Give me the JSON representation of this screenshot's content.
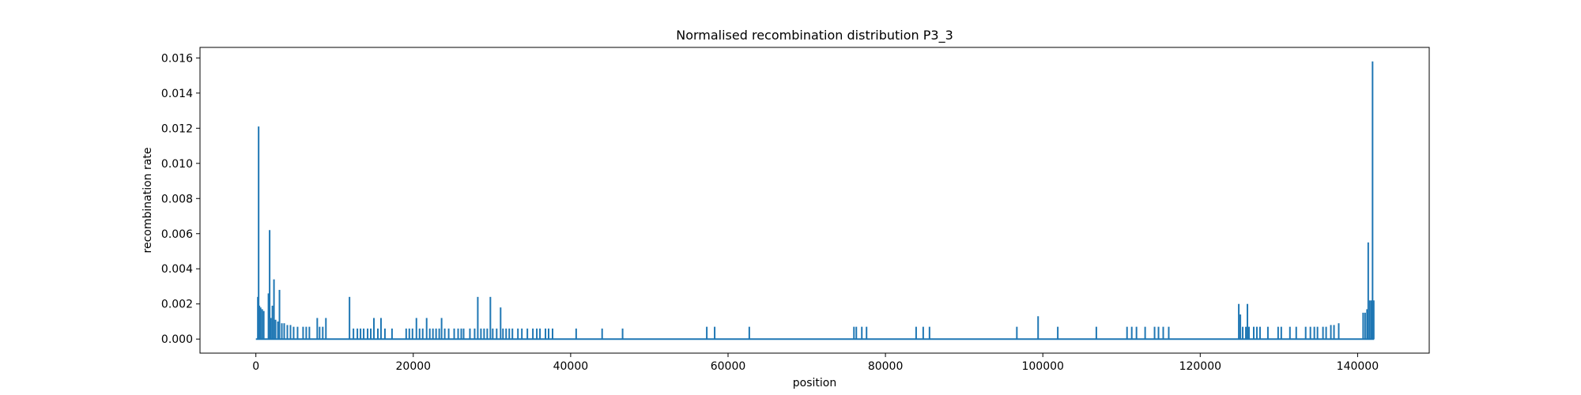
{
  "chart_data": {
    "type": "line",
    "title": "Normalised recombination distribution P3_3",
    "xlabel": "position",
    "ylabel": "recombination rate",
    "xlim": [
      -7100,
      149100
    ],
    "ylim": [
      -0.0008,
      0.0166
    ],
    "xticks": [
      0,
      20000,
      40000,
      60000,
      80000,
      100000,
      120000,
      140000
    ],
    "xtick_labels": [
      "0",
      "20000",
      "40000",
      "60000",
      "80000",
      "100000",
      "120000",
      "140000"
    ],
    "yticks": [
      0.0,
      0.002,
      0.004,
      0.006,
      0.008,
      0.01,
      0.012,
      0.014,
      0.016
    ],
    "ytick_labels": [
      "0.000",
      "0.002",
      "0.004",
      "0.006",
      "0.008",
      "0.010",
      "0.012",
      "0.014",
      "0.016"
    ],
    "grid": false,
    "series": [
      {
        "color": "#1f77b4",
        "x_range": [
          0,
          142100
        ],
        "baseline": 0.0,
        "spikes": [
          [
            250,
            0.0024
          ],
          [
            350,
            0.0121
          ],
          [
            450,
            0.0019
          ],
          [
            600,
            0.0018
          ],
          [
            800,
            0.0017
          ],
          [
            1000,
            0.0016
          ],
          [
            1200,
            0.0
          ],
          [
            1600,
            0.0026
          ],
          [
            1750,
            0.0062
          ],
          [
            1900,
            0.0012
          ],
          [
            2100,
            0.0019
          ],
          [
            2300,
            0.0034
          ],
          [
            2500,
            0.0011
          ],
          [
            2800,
            0.001
          ],
          [
            3000,
            0.0028
          ],
          [
            3300,
            0.0009
          ],
          [
            3600,
            0.0009
          ],
          [
            4000,
            0.0008
          ],
          [
            4400,
            0.0008
          ],
          [
            4800,
            0.0007
          ],
          [
            5300,
            0.0007
          ],
          [
            6000,
            0.0007
          ],
          [
            6400,
            0.0007
          ],
          [
            6800,
            0.0007
          ],
          [
            7800,
            0.0012
          ],
          [
            8100,
            0.0007
          ],
          [
            8500,
            0.0007
          ],
          [
            8900,
            0.0012
          ],
          [
            11900,
            0.0024
          ],
          [
            12400,
            0.0006
          ],
          [
            12900,
            0.0006
          ],
          [
            13300,
            0.0006
          ],
          [
            13700,
            0.0006
          ],
          [
            14200,
            0.0006
          ],
          [
            14600,
            0.0006
          ],
          [
            15000,
            0.0012
          ],
          [
            15500,
            0.0006
          ],
          [
            15900,
            0.0012
          ],
          [
            16400,
            0.0006
          ],
          [
            17300,
            0.0006
          ],
          [
            19100,
            0.0006
          ],
          [
            19500,
            0.0006
          ],
          [
            19900,
            0.0006
          ],
          [
            20400,
            0.0012
          ],
          [
            20800,
            0.0006
          ],
          [
            21200,
            0.0006
          ],
          [
            21700,
            0.0012
          ],
          [
            22100,
            0.0006
          ],
          [
            22500,
            0.0006
          ],
          [
            22900,
            0.0006
          ],
          [
            23300,
            0.0006
          ],
          [
            23600,
            0.0012
          ],
          [
            24000,
            0.0006
          ],
          [
            24500,
            0.0006
          ],
          [
            25200,
            0.0006
          ],
          [
            25700,
            0.0006
          ],
          [
            26100,
            0.0006
          ],
          [
            26400,
            0.0006
          ],
          [
            27200,
            0.0006
          ],
          [
            27800,
            0.0006
          ],
          [
            28200,
            0.0024
          ],
          [
            28600,
            0.0006
          ],
          [
            29000,
            0.0006
          ],
          [
            29400,
            0.0006
          ],
          [
            29800,
            0.0024
          ],
          [
            30100,
            0.0006
          ],
          [
            30600,
            0.0006
          ],
          [
            31100,
            0.0018
          ],
          [
            31400,
            0.0006
          ],
          [
            31800,
            0.0006
          ],
          [
            32200,
            0.0006
          ],
          [
            32600,
            0.0006
          ],
          [
            33300,
            0.0006
          ],
          [
            33800,
            0.0006
          ],
          [
            34500,
            0.0006
          ],
          [
            35200,
            0.0006
          ],
          [
            35700,
            0.0006
          ],
          [
            36100,
            0.0006
          ],
          [
            36800,
            0.0006
          ],
          [
            37200,
            0.0006
          ],
          [
            37700,
            0.0006
          ],
          [
            40700,
            0.0006
          ],
          [
            44000,
            0.0006
          ],
          [
            46600,
            0.0006
          ],
          [
            57300,
            0.0007
          ],
          [
            58300,
            0.0007
          ],
          [
            62700,
            0.0007
          ],
          [
            76000,
            0.0007
          ],
          [
            76300,
            0.0007
          ],
          [
            77000,
            0.0007
          ],
          [
            77600,
            0.0007
          ],
          [
            83900,
            0.0007
          ],
          [
            84800,
            0.0007
          ],
          [
            85600,
            0.0007
          ],
          [
            96700,
            0.0007
          ],
          [
            99400,
            0.0013
          ],
          [
            101900,
            0.0007
          ],
          [
            106800,
            0.0007
          ],
          [
            110700,
            0.0007
          ],
          [
            111300,
            0.0007
          ],
          [
            111900,
            0.0007
          ],
          [
            113000,
            0.0007
          ],
          [
            114200,
            0.0007
          ],
          [
            114700,
            0.0007
          ],
          [
            115300,
            0.0007
          ],
          [
            116000,
            0.0007
          ],
          [
            124900,
            0.002
          ],
          [
            125100,
            0.0014
          ],
          [
            125400,
            0.0007
          ],
          [
            125800,
            0.0007
          ],
          [
            126000,
            0.002
          ],
          [
            126200,
            0.0007
          ],
          [
            126800,
            0.0007
          ],
          [
            127200,
            0.0007
          ],
          [
            127600,
            0.0007
          ],
          [
            128600,
            0.0007
          ],
          [
            129900,
            0.0007
          ],
          [
            130300,
            0.0007
          ],
          [
            131400,
            0.0007
          ],
          [
            132200,
            0.0007
          ],
          [
            133400,
            0.0007
          ],
          [
            134000,
            0.0007
          ],
          [
            134500,
            0.0007
          ],
          [
            134900,
            0.0007
          ],
          [
            135600,
            0.0007
          ],
          [
            136000,
            0.0007
          ],
          [
            136600,
            0.0008
          ],
          [
            137000,
            0.0008
          ],
          [
            137600,
            0.0009
          ],
          [
            140700,
            0.0015
          ],
          [
            140950,
            0.0015
          ],
          [
            141200,
            0.0017
          ],
          [
            141350,
            0.0055
          ],
          [
            141550,
            0.0022
          ],
          [
            141750,
            0.0022
          ],
          [
            141900,
            0.0158
          ],
          [
            142050,
            0.0022
          ]
        ]
      }
    ]
  }
}
